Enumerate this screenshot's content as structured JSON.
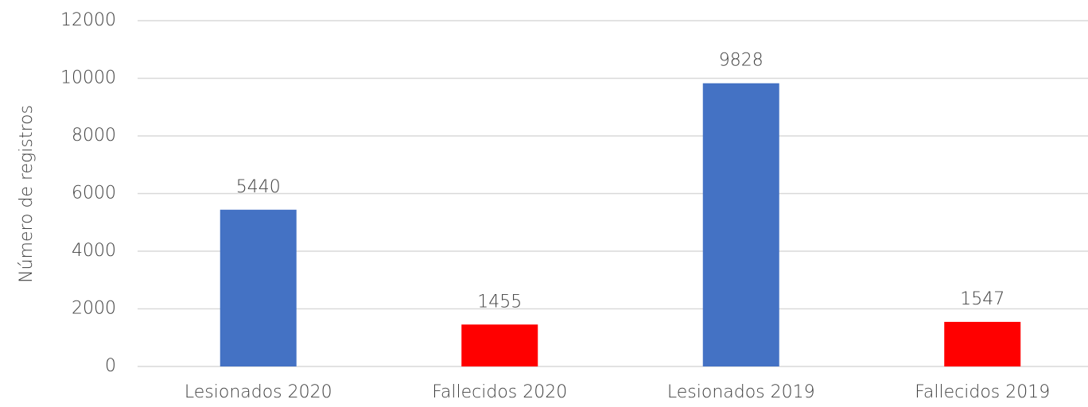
{
  "chart_data": {
    "type": "bar",
    "ylabel": "Número de registros",
    "categories": [
      "Lesionados 2020",
      "Fallecidos 2020",
      "Lesionados 2019",
      "Fallecidos 2019"
    ],
    "values": [
      5440,
      1455,
      9828,
      1547
    ],
    "colors": [
      "#4472c4",
      "#ff0000",
      "#4472c4",
      "#ff0000"
    ],
    "ylim": [
      0,
      12000
    ],
    "yticks": [
      0,
      2000,
      4000,
      6000,
      8000,
      10000,
      12000
    ],
    "grid": true
  }
}
